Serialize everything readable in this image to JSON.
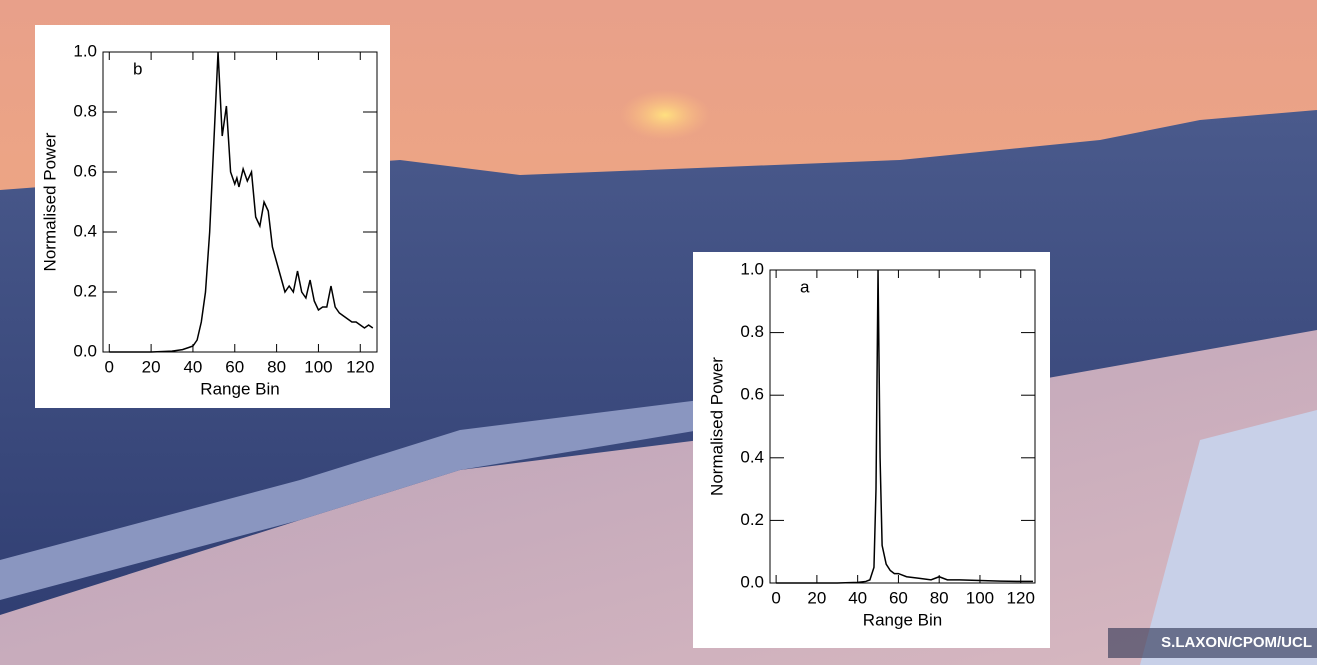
{
  "chart_data": [
    {
      "type": "line",
      "annotation": "b",
      "x_label": "Range Bin",
      "y_label": "Normalised Power",
      "color": "#000000",
      "x": [
        0,
        10,
        20,
        30,
        35,
        38,
        40,
        42,
        44,
        46,
        48,
        50,
        52,
        54,
        56,
        58,
        60,
        61,
        62,
        64,
        66,
        68,
        70,
        72,
        74,
        76,
        78,
        80,
        82,
        84,
        86,
        88,
        90,
        92,
        94,
        96,
        98,
        100,
        102,
        104,
        106,
        108,
        110,
        112,
        114,
        116,
        118,
        120,
        122,
        124,
        126
      ],
      "values": [
        0,
        0,
        0,
        0.003,
        0.008,
        0.015,
        0.02,
        0.04,
        0.1,
        0.2,
        0.4,
        0.7,
        1.0,
        0.72,
        0.82,
        0.6,
        0.56,
        0.58,
        0.55,
        0.61,
        0.57,
        0.6,
        0.45,
        0.42,
        0.5,
        0.47,
        0.35,
        0.3,
        0.25,
        0.2,
        0.22,
        0.2,
        0.27,
        0.2,
        0.18,
        0.24,
        0.17,
        0.14,
        0.15,
        0.15,
        0.22,
        0.15,
        0.13,
        0.12,
        0.11,
        0.1,
        0.1,
        0.09,
        0.08,
        0.09,
        0.08
      ],
      "xlim": [
        -3,
        128
      ],
      "xticks": [
        0,
        20,
        40,
        60,
        80,
        100,
        120
      ],
      "ylim": [
        0,
        1
      ],
      "yticks": [
        {
          "value": 0,
          "label": "0.0"
        },
        0.2,
        0.4,
        0.6,
        0.8,
        {
          "value": 1,
          "label": "1.0"
        }
      ]
    },
    {
      "type": "line",
      "annotation": "a",
      "x_label": "Range Bin",
      "y_label": "Normalised Power",
      "color": "#000000",
      "x": [
        0,
        10,
        20,
        30,
        40,
        44,
        46,
        48,
        49,
        50,
        51,
        52,
        54,
        56,
        58,
        60,
        64,
        70,
        76,
        80,
        84,
        90,
        100,
        110,
        120,
        126
      ],
      "values": [
        0,
        0,
        0,
        0,
        0.002,
        0.005,
        0.01,
        0.05,
        0.3,
        1.0,
        0.4,
        0.12,
        0.06,
        0.04,
        0.03,
        0.03,
        0.02,
        0.015,
        0.01,
        0.02,
        0.01,
        0.01,
        0.008,
        0.006,
        0.005,
        0.005
      ],
      "xlim": [
        -3,
        127
      ],
      "xticks": [
        0,
        20,
        40,
        60,
        80,
        100,
        120
      ],
      "ylim": [
        0,
        1
      ],
      "yticks": [
        {
          "value": 0,
          "label": "0.0"
        },
        0.2,
        0.4,
        0.6,
        0.8,
        {
          "value": 1,
          "label": "1.0"
        }
      ]
    }
  ],
  "credit": "S.LAXON/CPOM/UCL"
}
